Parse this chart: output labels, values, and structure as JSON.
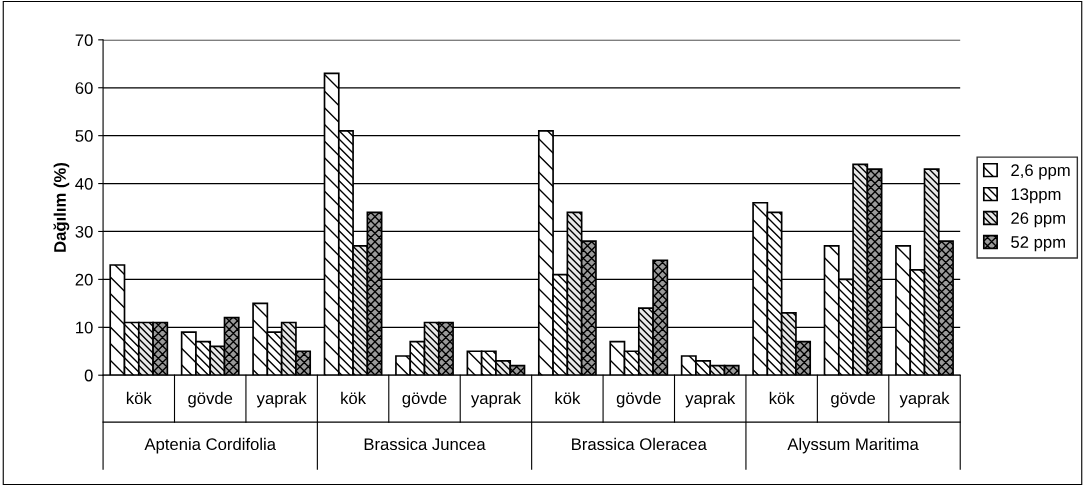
{
  "chart_data": {
    "type": "bar",
    "ylabel": "Dağılım (%)",
    "categories": [
      "kök",
      "gövde",
      "yaprak",
      "kök",
      "gövde",
      "yaprak",
      "kök",
      "gövde",
      "yaprak",
      "kök",
      "gövde",
      "yaprak"
    ],
    "annotations": [
      "Aptenia Cordifolia",
      "Brassica Juncea",
      "Brassica Oleracea",
      "Alyssum Maritima"
    ],
    "series": [
      {
        "name": "2,6 ppm",
        "color": "#000000",
        "values": [
          23,
          9,
          15,
          63,
          4,
          5,
          51,
          7,
          4,
          36,
          27,
          27
        ]
      },
      {
        "name": "13ppm",
        "color": "#000000",
        "values": [
          11,
          7,
          9,
          51,
          7,
          5,
          21,
          5,
          3,
          34,
          20,
          22
        ]
      },
      {
        "name": "26 ppm",
        "color": "#000000",
        "values": [
          11,
          6,
          11,
          27,
          11,
          3,
          34,
          14,
          2,
          13,
          44,
          43
        ]
      },
      {
        "name": "52 ppm",
        "color": "#000000",
        "values": [
          11,
          12,
          5,
          34,
          11,
          2,
          28,
          24,
          2,
          7,
          43,
          28
        ]
      }
    ],
    "ylim": [
      0,
      70
    ],
    "yticks": [
      0,
      10,
      20,
      30,
      40,
      50,
      60,
      70
    ],
    "grid": "y",
    "legend": "right"
  }
}
